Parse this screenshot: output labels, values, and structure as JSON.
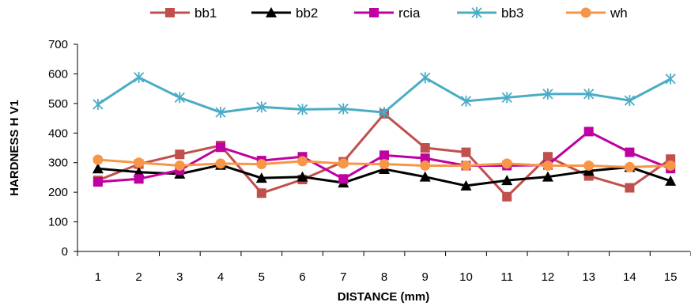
{
  "chart_data": {
    "type": "line",
    "title": "",
    "xlabel": "DISTANCE (mm)",
    "ylabel": "HARDNESS H V1",
    "ylim": [
      0,
      700
    ],
    "yticks": [
      0,
      100,
      200,
      300,
      400,
      500,
      600,
      700
    ],
    "categories": [
      "1",
      "2",
      "3",
      "4",
      "5",
      "6",
      "7",
      "8",
      "9",
      "10",
      "11",
      "12",
      "13",
      "14",
      "15"
    ],
    "legend_position": "top",
    "grid": false,
    "series": [
      {
        "name": "bb1",
        "color": "#c0504d",
        "marker": "square",
        "values": [
          240,
          295,
          328,
          358,
          197,
          243,
          303,
          465,
          350,
          335,
          185,
          320,
          255,
          215,
          312
        ]
      },
      {
        "name": "bb2",
        "color": "#000000",
        "marker": "triangle",
        "values": [
          280,
          268,
          262,
          292,
          248,
          252,
          232,
          278,
          252,
          222,
          240,
          252,
          272,
          285,
          238
        ]
      },
      {
        "name": "rcia",
        "color": "#c000a0",
        "marker": "square",
        "values": [
          235,
          245,
          275,
          352,
          307,
          320,
          245,
          325,
          315,
          290,
          290,
          292,
          405,
          335,
          280
        ]
      },
      {
        "name": "bb3",
        "color": "#4bacc6",
        "marker": "star",
        "values": [
          497,
          588,
          520,
          470,
          488,
          480,
          482,
          470,
          587,
          508,
          520,
          532,
          532,
          510,
          583
        ]
      },
      {
        "name": "wh",
        "color": "#f79646",
        "marker": "circle",
        "values": [
          310,
          300,
          290,
          297,
          295,
          305,
          297,
          295,
          290,
          290,
          297,
          290,
          290,
          285,
          290
        ]
      }
    ]
  }
}
